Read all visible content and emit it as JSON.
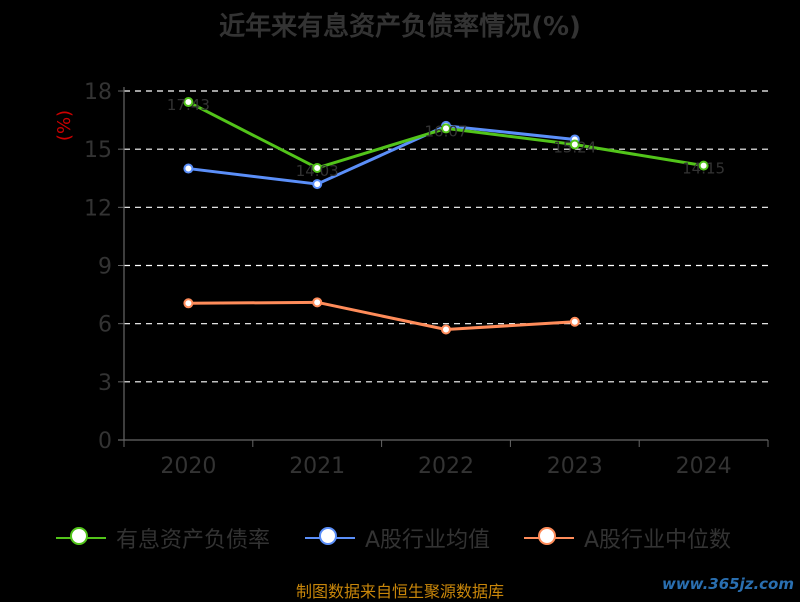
{
  "title": "近年来有息资产负债率情况(%)",
  "source": "制图数据来自恒生聚源数据库",
  "watermark": "www.365jz.com",
  "colors": {
    "background": "#000000",
    "axis": "#666666",
    "grid": "#ffffff",
    "tick_text": "#333333",
    "unit": "#cc0000"
  },
  "chart_data": {
    "type": "line",
    "title": "近年来有息资产负债率情况(%)",
    "ylabel": "(%)",
    "categories": [
      "2020",
      "2021",
      "2022",
      "2023",
      "2024"
    ],
    "ylim": [
      0,
      18
    ],
    "yticks": [
      0,
      3,
      6,
      9,
      12,
      15,
      18
    ],
    "grid": true,
    "legend_position": "bottom",
    "series": [
      {
        "name": "有息资产负债率",
        "color": "#52c41a",
        "values": [
          17.43,
          14.03,
          16.07,
          15.24,
          14.15
        ],
        "labels": [
          "17.43",
          "14.03",
          "16.07",
          "15.24",
          "14.15"
        ]
      },
      {
        "name": "A股行业均值",
        "color": "#5b8ff9",
        "values": [
          14.0,
          13.2,
          16.2,
          15.5,
          null
        ]
      },
      {
        "name": "A股行业中位数",
        "color": "#ff8c5a",
        "values": [
          7.05,
          7.1,
          5.7,
          6.1,
          null
        ]
      }
    ]
  }
}
